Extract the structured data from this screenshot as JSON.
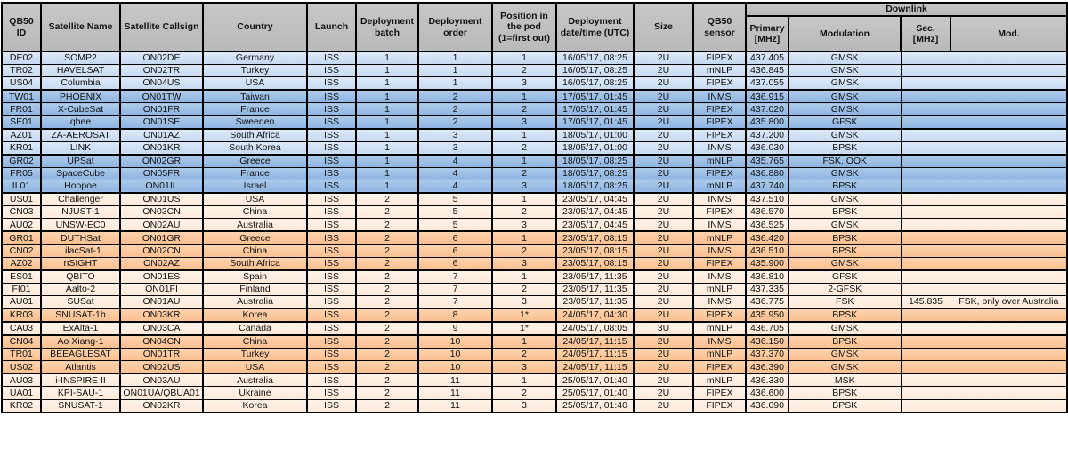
{
  "colors": {
    "header_bg": "#bfbfbf",
    "blue_light": "#c5d9f1",
    "blue_dark": "#8db4e2",
    "orange_light": "#fde9d9",
    "orange_dark": "#fabf8f",
    "border": "#000000",
    "text": "#111111"
  },
  "table": {
    "headers": {
      "qb50_id": "QB50 ID",
      "satellite_name": "Satellite Name",
      "satellite_callsign": "Satellite Callsign",
      "country": "Country",
      "launch": "Launch",
      "deployment_batch": "Deployment batch",
      "deployment_order": "Deployment order",
      "pod_position": "Position in the pod (1=first out)",
      "deployment_datetime": "Deployment date/time (UTC)",
      "size": "Size",
      "qb50_sensor": "QB50 sensor",
      "downlink": "Downlink",
      "primary_mhz": "Primary [MHz]",
      "modulation": "Modulation",
      "sec_mhz": "Sec. [MHz]",
      "sec_mod": "Mod."
    },
    "rows": [
      {
        "id": "DE02",
        "name": "SOMP2",
        "callsign": "ON02DE",
        "country": "Germany",
        "launch": "ISS",
        "batch": 1,
        "order": 1,
        "pod": "1",
        "datetime": "16/05/17, 08:25",
        "size": "2U",
        "sensor": "FIPEX",
        "primary": "437.405",
        "modulation": "GMSK",
        "sec": "",
        "mod": ""
      },
      {
        "id": "TR02",
        "name": "HAVELSAT",
        "callsign": "ON02TR",
        "country": "Turkey",
        "launch": "ISS",
        "batch": 1,
        "order": 1,
        "pod": "2",
        "datetime": "16/05/17, 08:25",
        "size": "2U",
        "sensor": "mNLP",
        "primary": "436.845",
        "modulation": "GMSK",
        "sec": "",
        "mod": ""
      },
      {
        "id": "US04",
        "name": "Columbia",
        "callsign": "ON04US",
        "country": "USA",
        "launch": "ISS",
        "batch": 1,
        "order": 1,
        "pod": "3",
        "datetime": "16/05/17, 08:25",
        "size": "2U",
        "sensor": "FIPEX",
        "primary": "437.055",
        "modulation": "GMSK",
        "sec": "",
        "mod": ""
      },
      {
        "id": "TW01",
        "name": "PHOENIX",
        "callsign": "ON01TW",
        "country": "Taiwan",
        "launch": "ISS",
        "batch": 1,
        "order": 2,
        "pod": "1",
        "datetime": "17/05/17, 01:45",
        "size": "2U",
        "sensor": "INMS",
        "primary": "436.915",
        "modulation": "GMSK",
        "sec": "",
        "mod": ""
      },
      {
        "id": "FR01",
        "name": "X-CubeSat",
        "callsign": "ON01FR",
        "country": "France",
        "launch": "ISS",
        "batch": 1,
        "order": 2,
        "pod": "2",
        "datetime": "17/05/17, 01:45",
        "size": "2U",
        "sensor": "FIPEX",
        "primary": "437.020",
        "modulation": "GMSK",
        "sec": "",
        "mod": ""
      },
      {
        "id": "SE01",
        "name": "qbee",
        "callsign": "ON01SE",
        "country": "Sweeden",
        "launch": "ISS",
        "batch": 1,
        "order": 2,
        "pod": "3",
        "datetime": "17/05/17, 01:45",
        "size": "2U",
        "sensor": "FIPEX",
        "primary": "435.800",
        "modulation": "GFSK",
        "sec": "",
        "mod": ""
      },
      {
        "id": "AZ01",
        "name": "ZA-AEROSAT",
        "callsign": "ON01AZ",
        "country": "South Africa",
        "launch": "ISS",
        "batch": 1,
        "order": 3,
        "pod": "1",
        "datetime": "18/05/17, 01:00",
        "size": "2U",
        "sensor": "FIPEX",
        "primary": "437.200",
        "modulation": "GMSK",
        "sec": "",
        "mod": ""
      },
      {
        "id": "KR01",
        "name": "LINK",
        "callsign": "ON01KR",
        "country": "South Korea",
        "launch": "ISS",
        "batch": 1,
        "order": 3,
        "pod": "2",
        "datetime": "18/05/17, 01:00",
        "size": "2U",
        "sensor": "INMS",
        "primary": "436.030",
        "modulation": "BPSK",
        "sec": "",
        "mod": ""
      },
      {
        "id": "GR02",
        "name": "UPSat",
        "callsign": "ON02GR",
        "country": "Greece",
        "launch": "ISS",
        "batch": 1,
        "order": 4,
        "pod": "1",
        "datetime": "18/05/17, 08:25",
        "size": "2U",
        "sensor": "mNLP",
        "primary": "435.765",
        "modulation": "FSK, OOK",
        "sec": "",
        "mod": ""
      },
      {
        "id": "FR05",
        "name": "SpaceCube",
        "callsign": "ON05FR",
        "country": "France",
        "launch": "ISS",
        "batch": 1,
        "order": 4,
        "pod": "2",
        "datetime": "18/05/17, 08:25",
        "size": "2U",
        "sensor": "FIPEX",
        "primary": "436.880",
        "modulation": "GMSK",
        "sec": "",
        "mod": ""
      },
      {
        "id": "IL01",
        "name": "Hoopoe",
        "callsign": "ON01IL",
        "country": "Israel",
        "launch": "ISS",
        "batch": 1,
        "order": 4,
        "pod": "3",
        "datetime": "18/05/17, 08:25",
        "size": "2U",
        "sensor": "mNLP",
        "primary": "437.740",
        "modulation": "BPSK",
        "sec": "",
        "mod": ""
      },
      {
        "id": "US01",
        "name": "Challenger",
        "callsign": "ON01US",
        "country": "USA",
        "launch": "ISS",
        "batch": 2,
        "order": 5,
        "pod": "1",
        "datetime": "23/05/17, 04:45",
        "size": "2U",
        "sensor": "INMS",
        "primary": "437.510",
        "modulation": "GMSK",
        "sec": "",
        "mod": ""
      },
      {
        "id": "CN03",
        "name": "NJUST-1",
        "callsign": "ON03CN",
        "country": "China",
        "launch": "ISS",
        "batch": 2,
        "order": 5,
        "pod": "2",
        "datetime": "23/05/17, 04:45",
        "size": "2U",
        "sensor": "FIPEX",
        "primary": "436.570",
        "modulation": "BPSK",
        "sec": "",
        "mod": ""
      },
      {
        "id": "AU02",
        "name": "UNSW-EC0",
        "callsign": "ON02AU",
        "country": "Australia",
        "launch": "ISS",
        "batch": 2,
        "order": 5,
        "pod": "3",
        "datetime": "23/05/17, 04:45",
        "size": "2U",
        "sensor": "INMS",
        "primary": "436.525",
        "modulation": "GMSK",
        "sec": "",
        "mod": ""
      },
      {
        "id": "GR01",
        "name": "DUTHSat",
        "callsign": "ON01GR",
        "country": "Greece",
        "launch": "ISS",
        "batch": 2,
        "order": 6,
        "pod": "1",
        "datetime": "23/05/17, 08:15",
        "size": "2U",
        "sensor": "mNLP",
        "primary": "436.420",
        "modulation": "BPSK",
        "sec": "",
        "mod": ""
      },
      {
        "id": "CN02",
        "name": "LilacSat-1",
        "callsign": "ON02CN",
        "country": "China",
        "launch": "ISS",
        "batch": 2,
        "order": 6,
        "pod": "2",
        "datetime": "23/05/17, 08:15",
        "size": "2U",
        "sensor": "INMS",
        "primary": "436.510",
        "modulation": "BPSK",
        "sec": "",
        "mod": ""
      },
      {
        "id": "AZ02",
        "name": "nSIGHT",
        "callsign": "ON02AZ",
        "country": "South Africa",
        "launch": "ISS",
        "batch": 2,
        "order": 6,
        "pod": "3",
        "datetime": "23/05/17, 08:15",
        "size": "2U",
        "sensor": "FIPEX",
        "primary": "435.900",
        "modulation": "GMSK",
        "sec": "",
        "mod": ""
      },
      {
        "id": "ES01",
        "name": "QBITO",
        "callsign": "ON01ES",
        "country": "Spain",
        "launch": "ISS",
        "batch": 2,
        "order": 7,
        "pod": "1",
        "datetime": "23/05/17, 11:35",
        "size": "2U",
        "sensor": "INMS",
        "primary": "436.810",
        "modulation": "GFSK",
        "sec": "",
        "mod": ""
      },
      {
        "id": "FI01",
        "name": "Aalto-2",
        "callsign": "ON01FI",
        "country": "Finland",
        "launch": "ISS",
        "batch": 2,
        "order": 7,
        "pod": "2",
        "datetime": "23/05/17, 11:35",
        "size": "2U",
        "sensor": "mNLP",
        "primary": "437.335",
        "modulation": "2-GFSK",
        "sec": "",
        "mod": ""
      },
      {
        "id": "AU01",
        "name": "SUSat",
        "callsign": "ON01AU",
        "country": "Australia",
        "launch": "ISS",
        "batch": 2,
        "order": 7,
        "pod": "3",
        "datetime": "23/05/17, 11:35",
        "size": "2U",
        "sensor": "INMS",
        "primary": "436.775",
        "modulation": "FSK",
        "sec": "145.835",
        "mod": "FSK, only over Australia"
      },
      {
        "id": "KR03",
        "name": "SNUSAT-1b",
        "callsign": "ON03KR",
        "country": "Korea",
        "launch": "ISS",
        "batch": 2,
        "order": 8,
        "pod": "1*",
        "datetime": "24/05/17, 04:30",
        "size": "2U",
        "sensor": "FIPEX",
        "primary": "435.950",
        "modulation": "BPSK",
        "sec": "",
        "mod": ""
      },
      {
        "id": "CA03",
        "name": "ExAlta-1",
        "callsign": "ON03CA",
        "country": "Canada",
        "launch": "ISS",
        "batch": 2,
        "order": 9,
        "pod": "1*",
        "datetime": "24/05/17, 08:05",
        "size": "3U",
        "sensor": "mNLP",
        "primary": "436.705",
        "modulation": "GMSK",
        "sec": "",
        "mod": ""
      },
      {
        "id": "CN04",
        "name": "Ao Xiang-1",
        "callsign": "ON04CN",
        "country": "China",
        "launch": "ISS",
        "batch": 2,
        "order": 10,
        "pod": "1",
        "datetime": "24/05/17, 11:15",
        "size": "2U",
        "sensor": "INMS",
        "primary": "436.150",
        "modulation": "BPSK",
        "sec": "",
        "mod": ""
      },
      {
        "id": "TR01",
        "name": "BEEAGLESAT",
        "callsign": "ON01TR",
        "country": "Turkey",
        "launch": "ISS",
        "batch": 2,
        "order": 10,
        "pod": "2",
        "datetime": "24/05/17, 11:15",
        "size": "2U",
        "sensor": "mNLP",
        "primary": "437.370",
        "modulation": "GMSK",
        "sec": "",
        "mod": ""
      },
      {
        "id": "US02",
        "name": "Atlantis",
        "callsign": "ON02US",
        "country": "USA",
        "launch": "ISS",
        "batch": 2,
        "order": 10,
        "pod": "3",
        "datetime": "24/05/17, 11:15",
        "size": "2U",
        "sensor": "FIPEX",
        "primary": "436.390",
        "modulation": "GMSK",
        "sec": "",
        "mod": ""
      },
      {
        "id": "AU03",
        "name": "i-INSPIRE II",
        "callsign": "ON03AU",
        "country": "Australia",
        "launch": "ISS",
        "batch": 2,
        "order": 11,
        "pod": "1",
        "datetime": "25/05/17, 01:40",
        "size": "2U",
        "sensor": "mNLP",
        "primary": "436.330",
        "modulation": "MSK",
        "sec": "",
        "mod": ""
      },
      {
        "id": "UA01",
        "name": "KPI-SAU-1",
        "callsign": "ON01UA/QBUA01",
        "country": "Ukraine",
        "launch": "ISS",
        "batch": 2,
        "order": 11,
        "pod": "2",
        "datetime": "25/05/17, 01:40",
        "size": "2U",
        "sensor": "FIPEX",
        "primary": "436.600",
        "modulation": "BPSK",
        "sec": "",
        "mod": ""
      },
      {
        "id": "KR02",
        "name": "SNUSAT-1",
        "callsign": "ON02KR",
        "country": "Korea",
        "launch": "ISS",
        "batch": 2,
        "order": 11,
        "pod": "3",
        "datetime": "25/05/17, 01:40",
        "size": "2U",
        "sensor": "FIPEX",
        "primary": "436.090",
        "modulation": "BPSK",
        "sec": "",
        "mod": ""
      }
    ]
  }
}
